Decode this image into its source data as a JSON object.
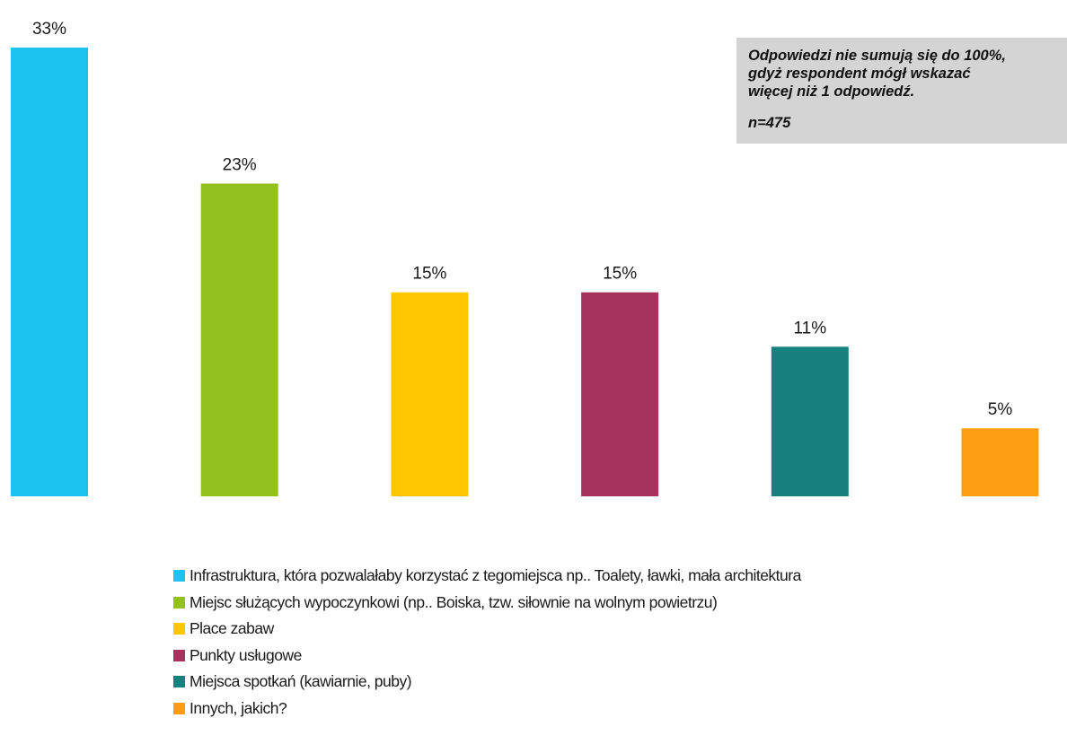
{
  "chart_data": {
    "type": "bar",
    "categories": [
      "Infrastruktura, która pozwalałaby korzystać z tegomiejsca np.. Toalety, ławki, mała architektura",
      "Miejsc służących wypoczynkowi (np.. Boiska, tzw. siłownie na wolnym powietrzu)",
      "Place zabaw",
      "Punkty usługowe",
      "Miejsca spotkań (kawiarnie, puby)",
      "Innych, jakich?"
    ],
    "values": [
      33,
      23,
      15,
      15,
      11,
      5
    ],
    "value_labels": [
      "33%",
      "23%",
      "15%",
      "15%",
      "11%",
      "5%"
    ],
    "colors": [
      "#1cc3f0",
      "#93c11e",
      "#fcc700",
      "#a6335c",
      "#18807e",
      "#fd9e12"
    ],
    "ylim": [
      0,
      33
    ],
    "grid": false,
    "legend_position": "bottom"
  },
  "note": {
    "lines": [
      "Odpowiedzi nie sumują się do 100%,",
      "gdyż respondent mógł wskazać",
      "więcej niż 1 odpowiedź."
    ],
    "sample": "n=475"
  }
}
